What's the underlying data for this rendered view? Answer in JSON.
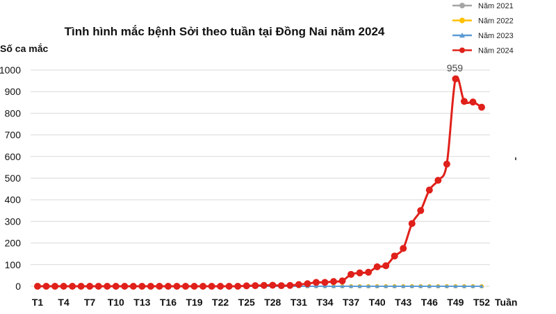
{
  "chart_data": {
    "type": "line",
    "title": "Tình hình mắc bệnh Sởi theo tuần tại Đồng Nai năm 2024",
    "ylabel": "Số ca mắc",
    "xlabel": "Tuần",
    "ylim": [
      0,
      1000
    ],
    "yticks": [
      0,
      100,
      200,
      300,
      400,
      500,
      600,
      700,
      800,
      900,
      1000
    ],
    "xtick_labels": [
      "T1",
      "T4",
      "T7",
      "T10",
      "T13",
      "T16",
      "T19",
      "T22",
      "T25",
      "T28",
      "T31",
      "T34",
      "T37",
      "T40",
      "T43",
      "T46",
      "T49",
      "T52"
    ],
    "x": [
      "T1",
      "T2",
      "T3",
      "T4",
      "T5",
      "T6",
      "T7",
      "T8",
      "T9",
      "T10",
      "T11",
      "T12",
      "T13",
      "T14",
      "T15",
      "T16",
      "T17",
      "T18",
      "T19",
      "T20",
      "T21",
      "T22",
      "T23",
      "T24",
      "T25",
      "T26",
      "T27",
      "T28",
      "T29",
      "T30",
      "T31",
      "T32",
      "T33",
      "T34",
      "T35",
      "T36",
      "T37",
      "T38",
      "T39",
      "T40",
      "T41",
      "T42",
      "T43",
      "T44",
      "T45",
      "T46",
      "T47",
      "T48",
      "T49",
      "T50",
      "T51",
      "T52"
    ],
    "grid": true,
    "legend_position": "top-right",
    "annotation": "959",
    "series": [
      {
        "name": "Năm 2021",
        "color": "#a5a5a5",
        "marker": "circle",
        "values": [
          0,
          0,
          0,
          0,
          0,
          0,
          0,
          0,
          0,
          0,
          0,
          0,
          0,
          0,
          0,
          0,
          0,
          0,
          0,
          0,
          0,
          0,
          0,
          0,
          0,
          0,
          0,
          0,
          0,
          0,
          0,
          0,
          0,
          0,
          0,
          0,
          0,
          0,
          0,
          0,
          0,
          0,
          0,
          0,
          0,
          0,
          0,
          0,
          0,
          0,
          0,
          0
        ]
      },
      {
        "name": "Năm 2022",
        "color": "#ffc000",
        "marker": "circle",
        "values": [
          0,
          0,
          0,
          0,
          0,
          0,
          0,
          0,
          0,
          0,
          0,
          0,
          0,
          0,
          0,
          0,
          0,
          0,
          0,
          0,
          0,
          0,
          0,
          0,
          0,
          0,
          0,
          0,
          0,
          0,
          0,
          0,
          0,
          0,
          0,
          0,
          0,
          0,
          0,
          0,
          0,
          0,
          0,
          0,
          0,
          0,
          0,
          0,
          0,
          0,
          0,
          0
        ]
      },
      {
        "name": "Năm 2023",
        "color": "#5b9bd5",
        "marker": "triangle",
        "values": [
          0,
          0,
          0,
          0,
          0,
          0,
          0,
          0,
          0,
          0,
          0,
          0,
          0,
          0,
          0,
          0,
          0,
          0,
          0,
          0,
          0,
          0,
          0,
          0,
          0,
          0,
          0,
          0,
          0,
          0,
          0,
          0,
          0,
          0,
          0,
          0,
          0,
          0,
          0,
          0,
          0,
          0,
          0,
          0,
          0,
          0,
          0,
          0,
          0,
          0,
          0,
          0
        ]
      },
      {
        "name": "Năm 2024",
        "color": "#e0201a",
        "marker": "circle",
        "values": [
          0,
          0,
          0,
          0,
          0,
          0,
          0,
          0,
          0,
          0,
          0,
          0,
          0,
          0,
          0,
          0,
          0,
          0,
          0,
          0,
          0,
          0,
          0,
          0,
          2,
          3,
          4,
          5,
          3,
          4,
          8,
          12,
          18,
          18,
          22,
          25,
          55,
          62,
          65,
          90,
          95,
          140,
          175,
          290,
          350,
          445,
          490,
          565,
          959,
          855,
          852,
          828
        ]
      }
    ]
  }
}
